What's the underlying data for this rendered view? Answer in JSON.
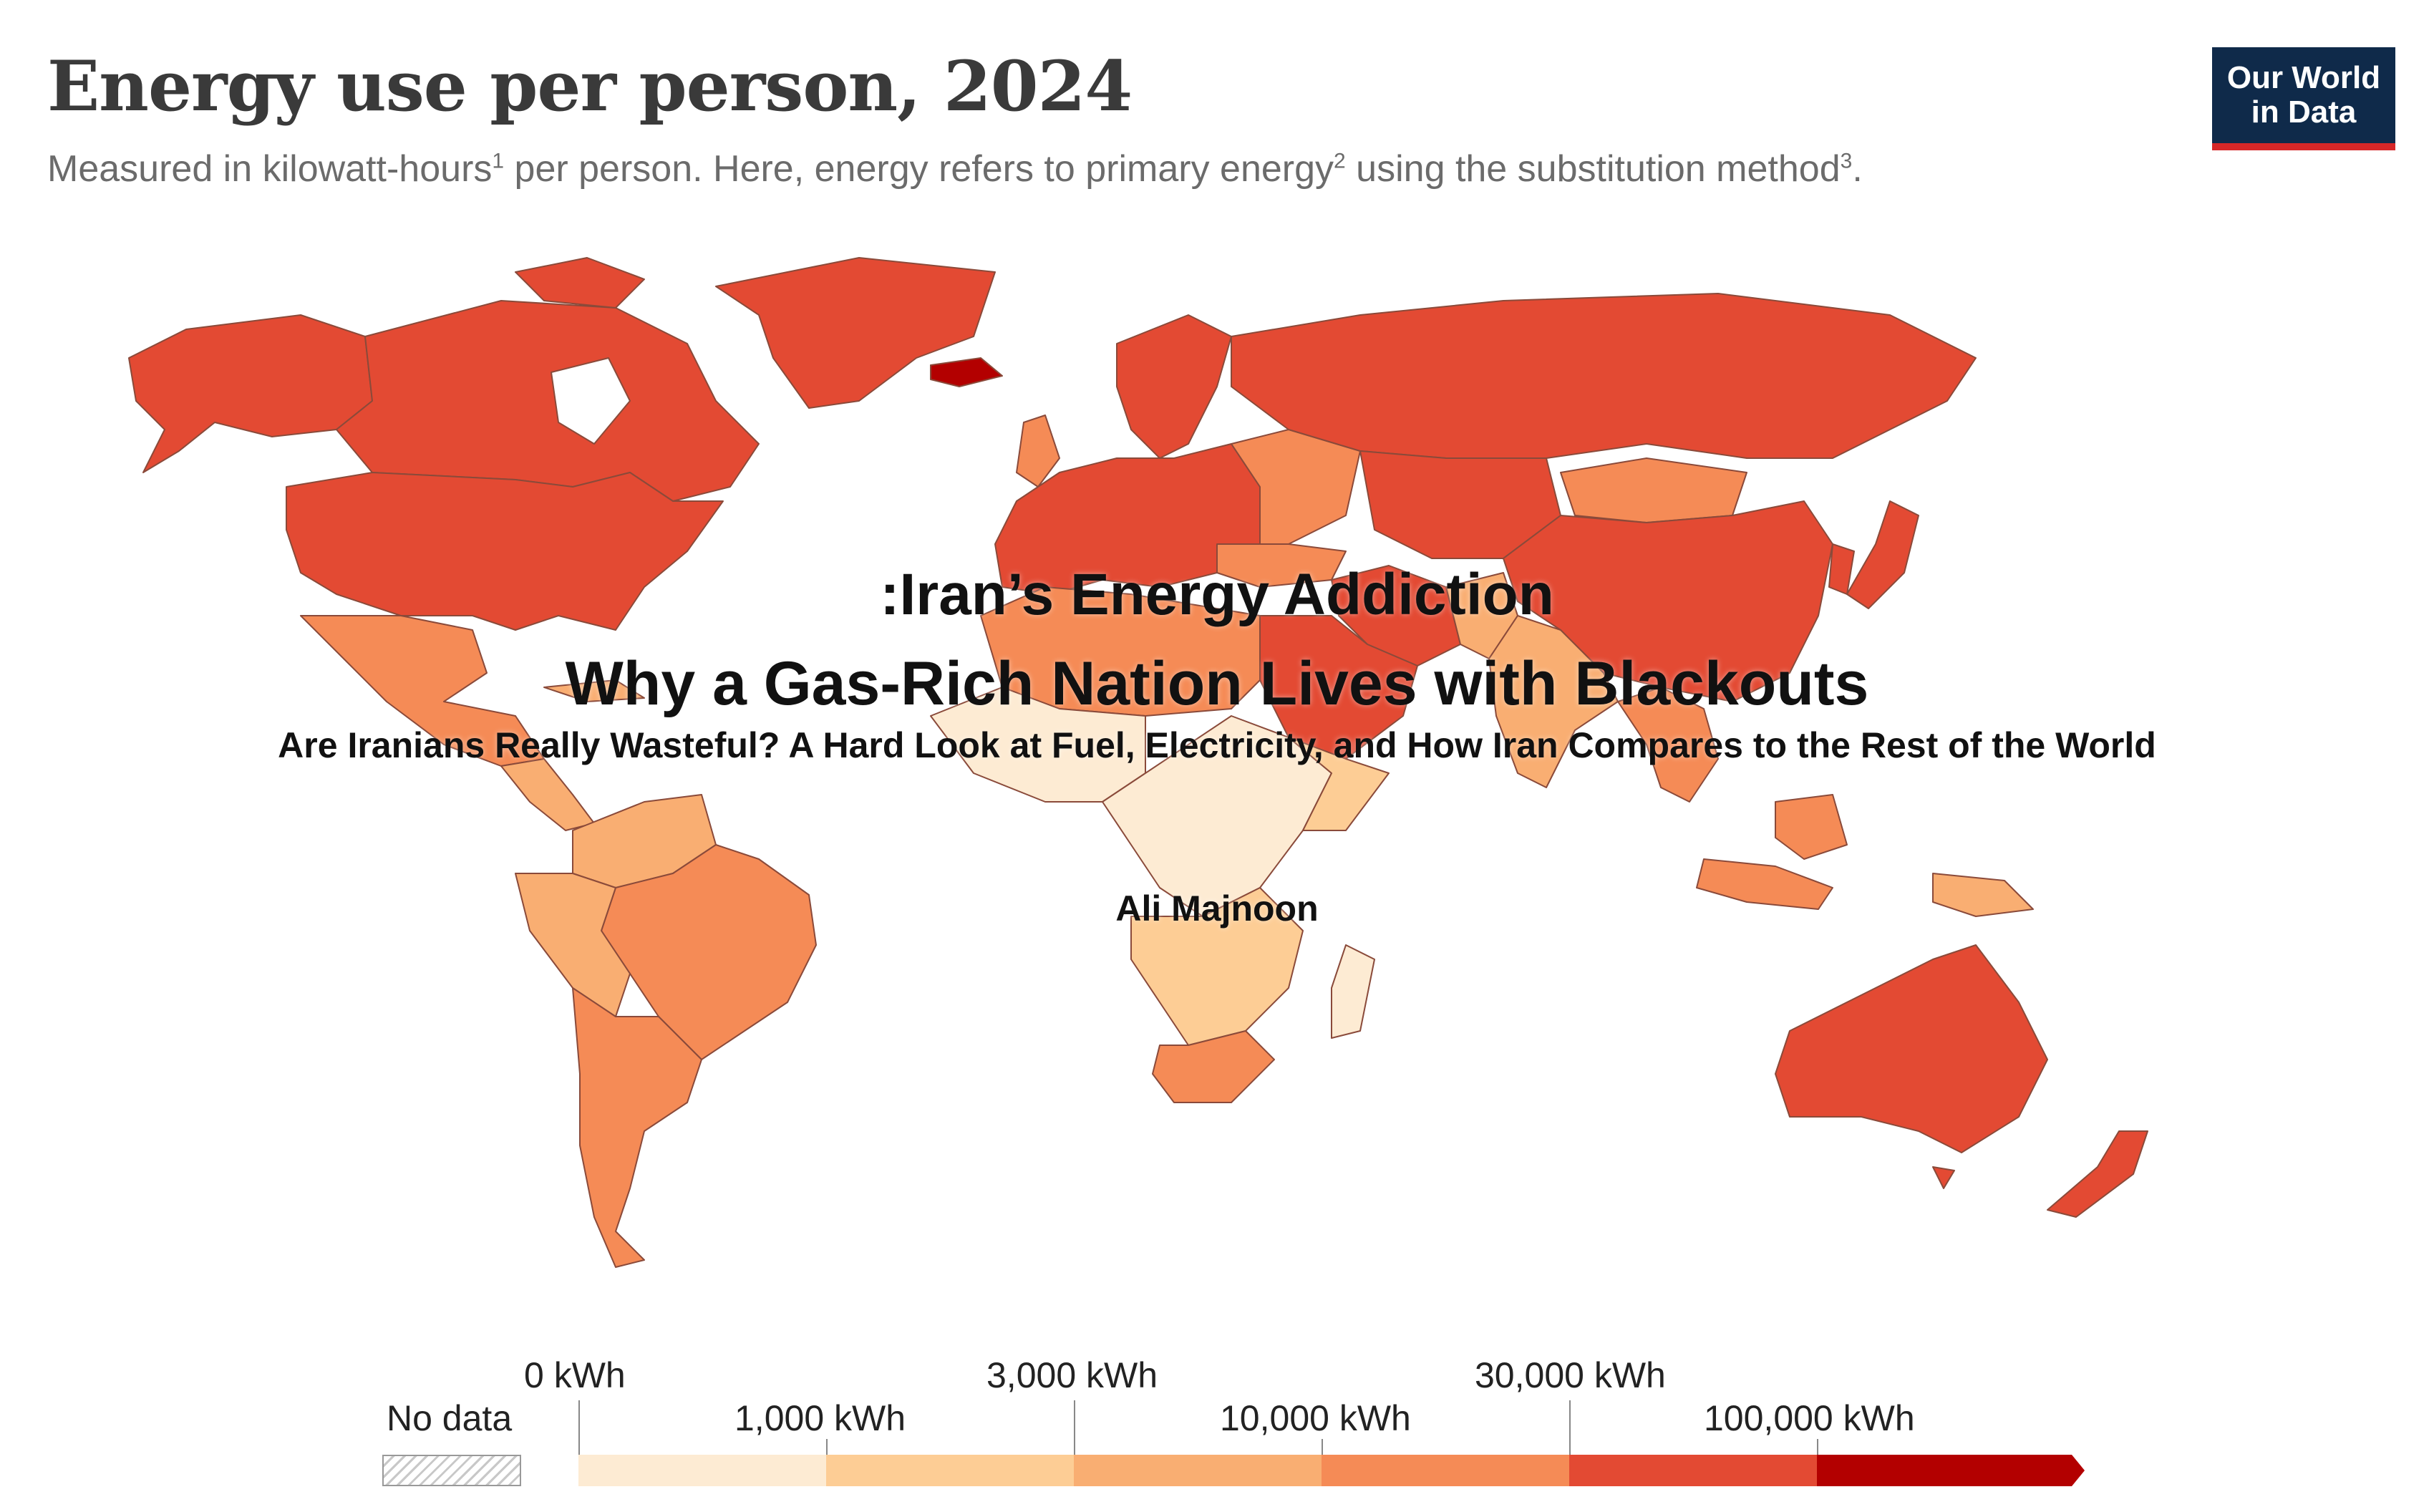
{
  "header": {
    "title": "Energy use per person, 2024",
    "subtitle_a": "Measured in kilowatt-hours",
    "subtitle_sup1": "1",
    "subtitle_b": " per person. Here, energy refers to primary energy",
    "subtitle_sup2": "2",
    "subtitle_c": " using the substitution method",
    "subtitle_sup3": "3",
    "subtitle_d": "."
  },
  "logo": {
    "line1": "Our World",
    "line2": "in Data"
  },
  "overlay": {
    "headline1": ":Iran’s Energy Addiction",
    "headline2": "Why a Gas-Rich Nation Lives with Blackouts",
    "tagline": "Are Iranians Really Wasteful? A Hard Look at Fuel, Electricity, and How Iran Compares to the Rest of the World",
    "author": "Ali Majnoon"
  },
  "legend": {
    "no_data": "No data",
    "labels_top": [
      "0 kWh",
      "3,000 kWh",
      "30,000 kWh"
    ],
    "labels_bottom": [
      "1,000 kWh",
      "10,000 kWh",
      "100,000 kWh"
    ]
  },
  "colors": {
    "bin1": "#fdebd3",
    "bin2": "#fdcd95",
    "bin3": "#f9ae72",
    "bin4": "#f58b56",
    "bin5": "#e34a33",
    "bin6": "#b30000",
    "border": "#8a4a3a"
  }
}
